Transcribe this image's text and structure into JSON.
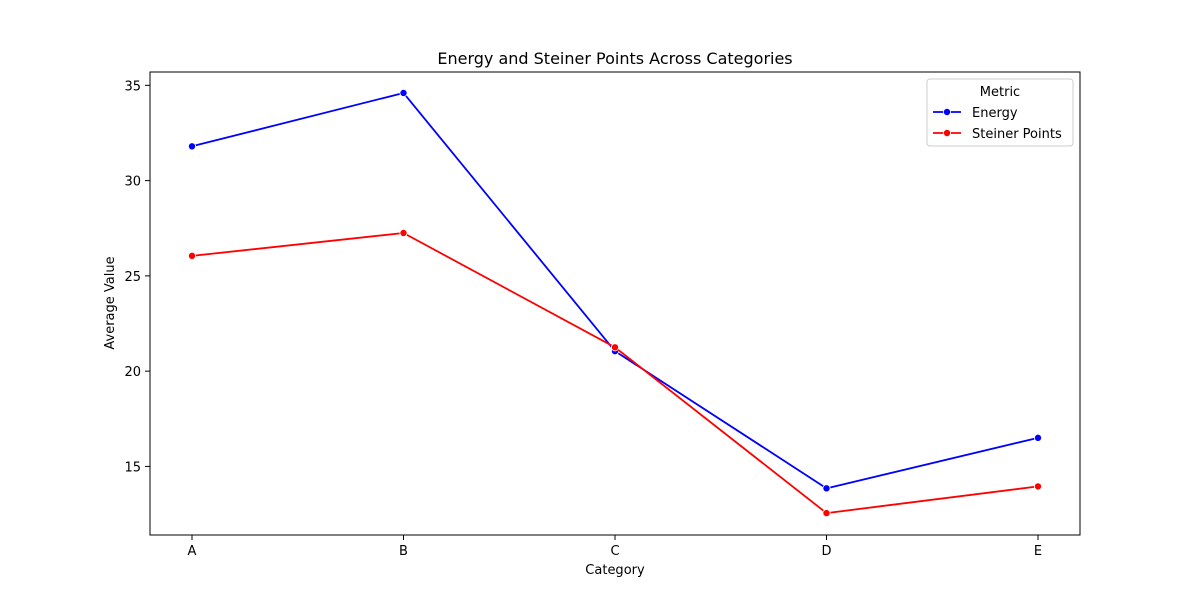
{
  "chart_data": {
    "type": "line",
    "title": "Energy and Steiner Points Across Categories",
    "xlabel": "Category",
    "ylabel": "Average Value",
    "categories": [
      "A",
      "B",
      "C",
      "D",
      "E"
    ],
    "yticks": [
      15,
      20,
      25,
      30,
      35
    ],
    "ylim": [
      11.4,
      35.7
    ],
    "grid": false,
    "legend": {
      "title": "Metric",
      "placement": "top-right"
    },
    "series": [
      {
        "name": "Energy",
        "color": "#0000ff",
        "values": [
          31.8,
          34.6,
          21.05,
          13.85,
          16.5
        ]
      },
      {
        "name": "Steiner Points",
        "color": "#ff0000",
        "values": [
          26.05,
          27.25,
          21.25,
          12.55,
          13.95
        ]
      }
    ]
  }
}
